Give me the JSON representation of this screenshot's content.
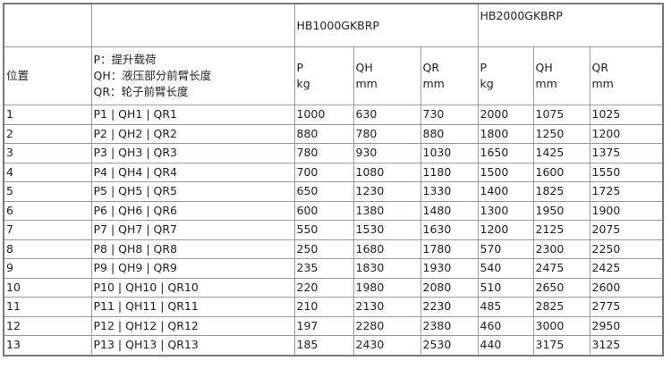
{
  "header": {
    "models": [
      "HB1000GKBRP",
      "HB2000GKBRP"
    ],
    "position_label": "位置",
    "legend": [
      "P：提升载荷",
      "QH：液压部分前臂长度",
      "QR：轮子前臂长度"
    ],
    "units": [
      {
        "name": "P",
        "unit": "kg"
      },
      {
        "name": "QH",
        "unit": "mm"
      },
      {
        "name": "QR",
        "unit": "mm"
      },
      {
        "name": "P",
        "unit": "kg"
      },
      {
        "name": "QH",
        "unit": "mm"
      },
      {
        "name": "QR",
        "unit": "mm"
      }
    ]
  },
  "rows": [
    [
      "1",
      "P1 | QH1 | QR1",
      "1000",
      "630",
      "730",
      "2000",
      "1075",
      "1025"
    ],
    [
      "2",
      "P2 | QH2 | QR2",
      "880",
      "780",
      "880",
      "1800",
      "1250",
      "1200"
    ],
    [
      "3",
      "P3 | QH3 | QR3",
      "780",
      "930",
      "1030",
      "1650",
      "1425",
      "1375"
    ],
    [
      "4",
      "P4 | QH4 | QR4",
      "700",
      "1080",
      "1180",
      "1500",
      "1600",
      "1550"
    ],
    [
      "5",
      "P5 | QH5 | QR5",
      "650",
      "1230",
      "1330",
      "1400",
      "1825",
      "1725"
    ],
    [
      "6",
      "P6 | QH6 | QR6",
      "600",
      "1380",
      "1480",
      "1300",
      "1950",
      "1900"
    ],
    [
      "7",
      "P7 | QH7 | QR7",
      "550",
      "1530",
      "1630",
      "1200",
      "2125",
      "2075"
    ],
    [
      "8",
      "P8 | QH8 | QR8",
      "250",
      "1680",
      "1780",
      "570",
      "2300",
      "2250"
    ],
    [
      "9",
      "P9 | QH9 | QR9",
      "235",
      "1830",
      "1930",
      "540",
      "2475",
      "2425"
    ],
    [
      "10",
      "P10 | QH10 | QR10",
      "220",
      "1980",
      "2080",
      "510",
      "2650",
      "2600"
    ],
    [
      "11",
      "P11 | QH11 | QR11",
      "210",
      "2130",
      "2230",
      "485",
      "2825",
      "2775"
    ],
    [
      "12",
      "P12 | QH12 | QR12",
      "197",
      "2280",
      "2380",
      "460",
      "3000",
      "2950"
    ],
    [
      "13",
      "P13 | QH13 | QR13",
      "185",
      "2430",
      "2530",
      "440",
      "3175",
      "3125"
    ]
  ]
}
